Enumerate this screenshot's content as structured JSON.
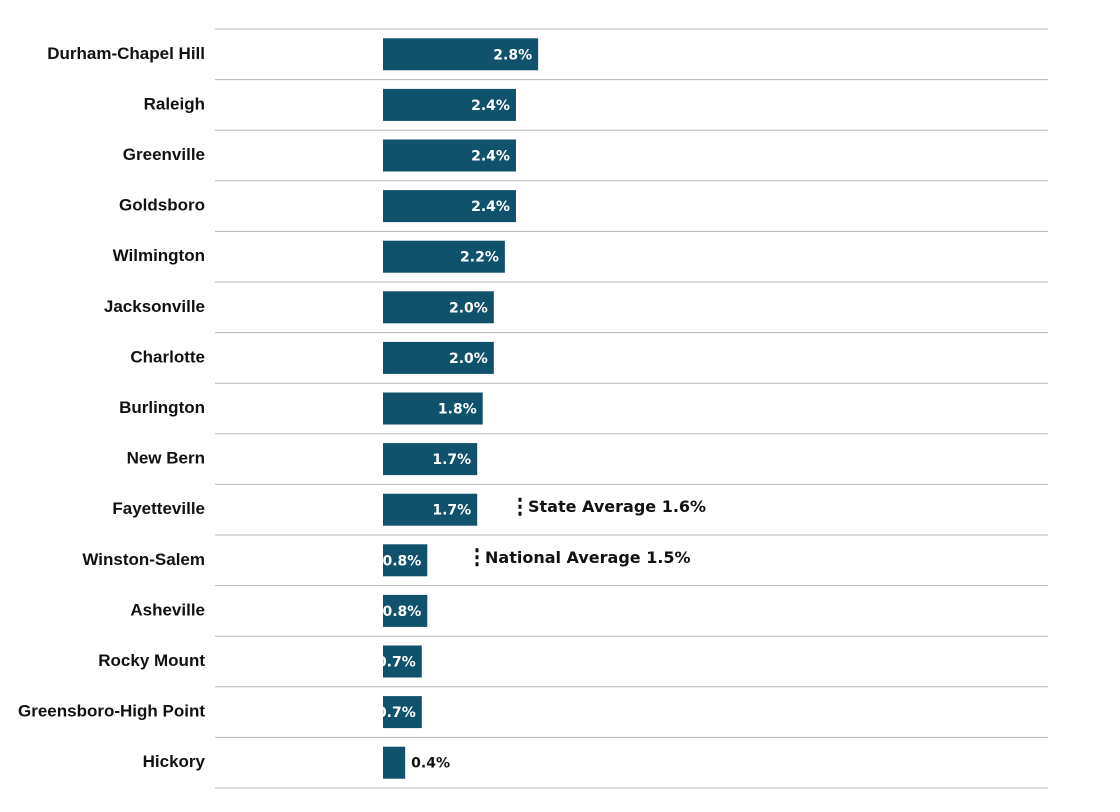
{
  "chart_data": {
    "type": "bar",
    "orientation": "horizontal",
    "categories": [
      "Durham-Chapel Hill",
      "Raleigh",
      "Greenville",
      "Goldsboro",
      "Wilmington",
      "Jacksonville",
      "Charlotte",
      "Burlington",
      "New Bern",
      "Fayetteville",
      "Winston-Salem",
      "Asheville",
      "Rocky Mount",
      "Greensboro-High Point",
      "Hickory"
    ],
    "values": [
      2.8,
      2.4,
      2.4,
      2.4,
      2.2,
      2.0,
      2.0,
      1.8,
      1.7,
      1.7,
      0.8,
      0.8,
      0.7,
      0.7,
      0.4
    ],
    "value_labels": [
      "2.8%",
      "2.4%",
      "2.4%",
      "2.4%",
      "2.2%",
      "2.0%",
      "2.0%",
      "1.8%",
      "1.7%",
      "1.7%",
      "0.8%",
      "0.8%",
      "0.7%",
      "0.7%",
      "0.4%"
    ],
    "color": "#10516b",
    "annotations": [
      "State Average 1.6%",
      "National Average 1.5%"
    ]
  }
}
